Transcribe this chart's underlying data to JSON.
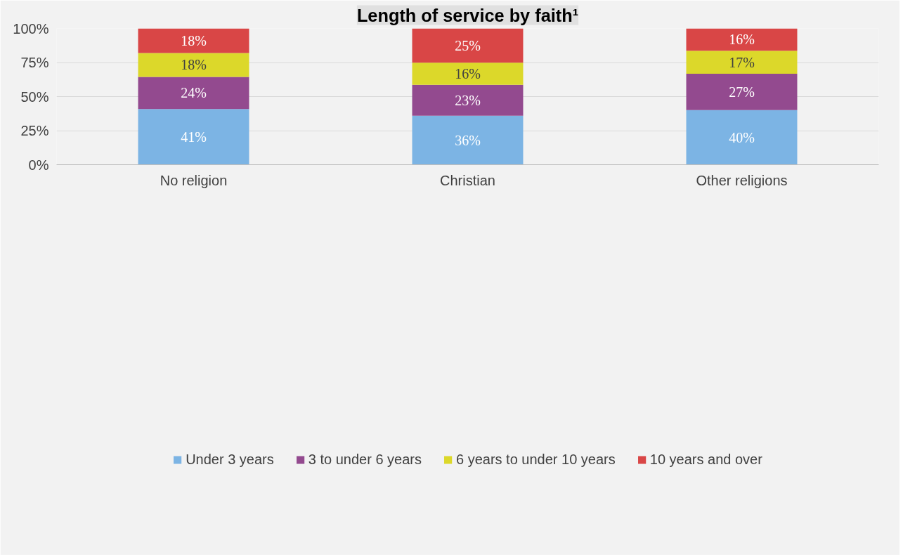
{
  "chart_data": {
    "type": "bar",
    "title": "Length of service by faith¹",
    "stacked": true,
    "categories": [
      "No religion",
      "Christian",
      "Other religions"
    ],
    "series": [
      {
        "name": "Under 3 years",
        "color": "#7cb4e4",
        "values": [
          40.8,
          36.0,
          40.1
        ],
        "value_labels": [
          "41%",
          "36%",
          "40%"
        ]
      },
      {
        "name": "3 to under 6 years",
        "color": "#934a8f",
        "values": [
          23.6,
          22.6,
          26.7
        ],
        "value_labels": [
          "24%",
          "23%",
          "27%"
        ]
      },
      {
        "name": "6 years to under 10 years",
        "color": "#dcd82a",
        "values": [
          17.6,
          16.3,
          16.8
        ],
        "value_labels": [
          "18%",
          "16%",
          "17%"
        ]
      },
      {
        "name": "10 years and over",
        "color": "#d94646",
        "values": [
          18.0,
          25.1,
          16.4
        ],
        "value_labels": [
          "18%",
          "25%",
          "16%"
        ]
      }
    ],
    "ylim": [
      0,
      100
    ],
    "yticks": [
      {
        "value": 0,
        "label": "0%"
      },
      {
        "value": 25,
        "label": "25%"
      },
      {
        "value": 50,
        "label": "50%"
      },
      {
        "value": 75,
        "label": "75%"
      },
      {
        "value": 100,
        "label": "100%"
      }
    ],
    "grid": "y",
    "legend": "bottom"
  }
}
